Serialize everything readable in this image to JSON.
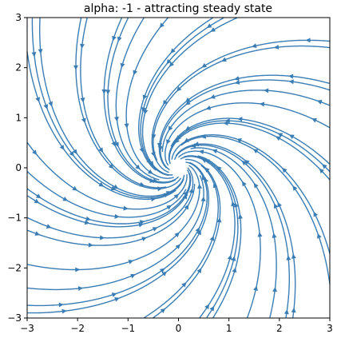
{
  "chart_data": {
    "type": "streamplot",
    "title": "alpha: -1 - attracting steady state",
    "xlabel": "",
    "ylabel": "",
    "xlim": [
      -3,
      3
    ],
    "ylim": [
      -3,
      3
    ],
    "xticks": [
      -3,
      -2,
      -1,
      0,
      1,
      2,
      3
    ],
    "yticks": [
      -3,
      -2,
      -1,
      0,
      1,
      2,
      3
    ],
    "xtick_labels": [
      "−3",
      "−2",
      "−1",
      "0",
      "1",
      "2",
      "3"
    ],
    "ytick_labels": [
      "−3",
      "−2",
      "−1",
      "0",
      "1",
      "2",
      "3"
    ],
    "grid": false,
    "vector_field": {
      "description_u": "alpha*x - y",
      "description_v": "x + alpha*y",
      "alpha": -1,
      "steady_state": [
        0,
        0
      ]
    },
    "line_color": "#3a7db5"
  }
}
